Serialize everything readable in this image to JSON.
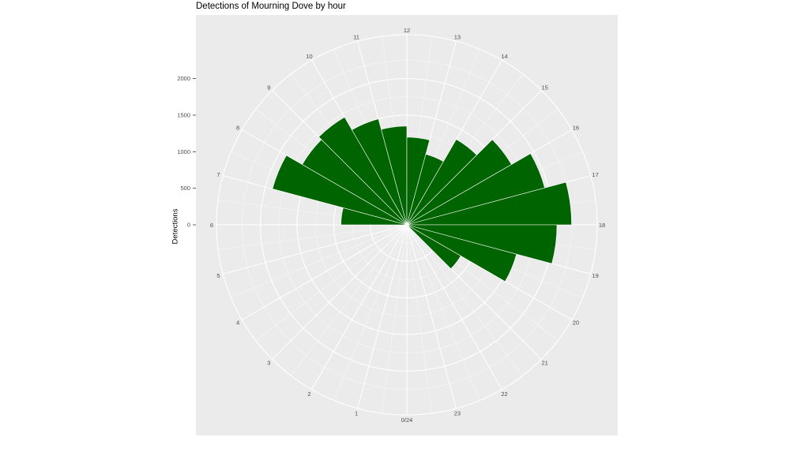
{
  "chart_data": {
    "type": "bar",
    "coord": "polar",
    "title": "Detections of Mourning Dove by hour",
    "xlabel": "",
    "ylabel": "Detections",
    "hour_labels": [
      "0/24",
      "1",
      "2",
      "3",
      "4",
      "5",
      "6",
      "7",
      "8",
      "9",
      "10",
      "11",
      "12",
      "13",
      "14",
      "15",
      "16",
      "17",
      "18",
      "19",
      "20",
      "21",
      "22",
      "23"
    ],
    "radial_ticks": [
      "0",
      "500",
      "1000",
      "1500",
      "2000"
    ],
    "radial_tick_values": [
      0,
      500,
      1000,
      1500,
      2000
    ],
    "ylim": [
      0,
      2600
    ],
    "categories": [
      0,
      1,
      2,
      3,
      4,
      5,
      6,
      7,
      8,
      9,
      10,
      11,
      12,
      13,
      14,
      15,
      16,
      17,
      18,
      19,
      20,
      21,
      22,
      23
    ],
    "values": [
      0,
      0,
      0,
      0,
      0,
      0,
      900,
      1900,
      1650,
      1700,
      1500,
      1350,
      1200,
      1000,
      1350,
      1650,
      1950,
      2250,
      2050,
      1550,
      850,
      0,
      0,
      0
    ],
    "grid": true,
    "bar_color": "#006400",
    "panel_color": "#EBEBEB"
  }
}
